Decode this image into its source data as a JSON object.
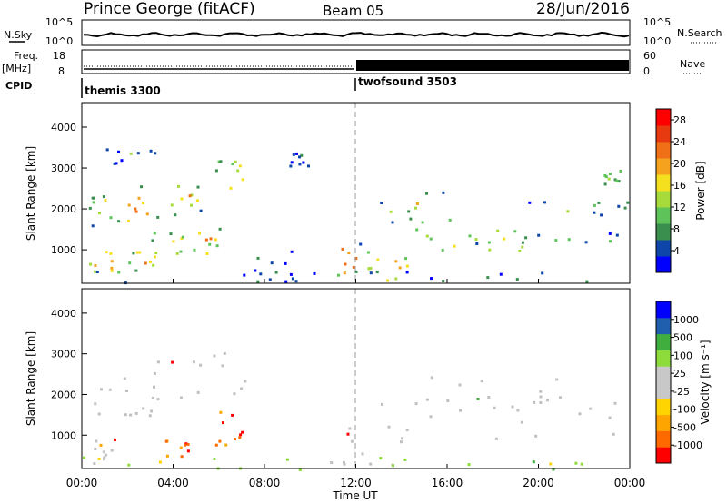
{
  "header": {
    "station": "Prince George (fitACF)",
    "beam": "Beam 05",
    "date": "28/Jun/2016"
  },
  "top_panels": {
    "nsky": {
      "label": "N.Sky",
      "ticks": [
        "10^5",
        "10^0"
      ],
      "right_label": "N.Search",
      "right_ticks": [
        "10^5",
        "10^0"
      ]
    },
    "freq": {
      "label_line1": "Freq.",
      "label_line2": "[MHz]",
      "ticks": [
        "18",
        "8"
      ],
      "right_label": "Nave",
      "right_ticks": [
        "60",
        "0"
      ]
    },
    "cpid": {
      "label": "CPID",
      "modes": [
        {
          "name": "themis 3300",
          "start_hour": 0
        },
        {
          "name": "twofsound 3503",
          "start_hour": 12
        }
      ]
    }
  },
  "colors": {
    "power_scale": [
      "#0000ff",
      "#0d45a8",
      "#3a8f4e",
      "#5ec45a",
      "#a6db3b",
      "#f5e020",
      "#f5a31e",
      "#f07018",
      "#e83a10",
      "#ff0000"
    ],
    "velocity_scale": [
      "#ff0000",
      "#ff6a00",
      "#ffa500",
      "#ffd400",
      "#c8c8c8",
      "#c8c8c8",
      "#8edb3c",
      "#3fae3f",
      "#1f5fae",
      "#0000ff"
    ],
    "ground_scatter": "#c0c0c0"
  },
  "chart_data": [
    {
      "type": "heatmap",
      "name": "power",
      "ylabel": "Slant Range [km]",
      "ylim": [
        180,
        4600
      ],
      "yticks": [
        "1000",
        "2000",
        "3000",
        "4000"
      ],
      "xlim": [
        0,
        24
      ],
      "colorbar": {
        "label": "Power [dB]",
        "range": [
          0,
          30
        ],
        "ticks": [
          "4",
          "8",
          "12",
          "16",
          "20",
          "24",
          "28"
        ]
      },
      "echo_regions": [
        {
          "t0": 0.1,
          "t1": 1.8,
          "r0": 250,
          "r1": 1000,
          "level": 0.85
        },
        {
          "t0": 0.3,
          "t1": 1.6,
          "r0": 1500,
          "r1": 2400,
          "level": 0.6
        },
        {
          "t0": 1.5,
          "t1": 3.3,
          "r0": 1600,
          "r1": 2600,
          "level": 0.75
        },
        {
          "t0": 2.0,
          "t1": 3.2,
          "r0": 500,
          "r1": 1000,
          "level": 0.7
        },
        {
          "t0": 3.0,
          "t1": 4.6,
          "r0": 800,
          "r1": 1500,
          "level": 0.6
        },
        {
          "t0": 3.8,
          "t1": 5.3,
          "r0": 1800,
          "r1": 2800,
          "level": 0.7
        },
        {
          "t0": 4.8,
          "t1": 6.3,
          "r0": 900,
          "r1": 1700,
          "level": 0.65
        },
        {
          "t0": 5.8,
          "t1": 7.3,
          "r0": 2500,
          "r1": 3200,
          "level": 0.7
        },
        {
          "t0": 1.0,
          "t1": 3.5,
          "r0": 3100,
          "r1": 3550,
          "level": 0.35
        },
        {
          "t0": 7.5,
          "t1": 9.5,
          "r0": 200,
          "r1": 1400,
          "level": 0.25
        },
        {
          "t0": 9.0,
          "t1": 10.0,
          "r0": 2900,
          "r1": 3400,
          "level": 0.2
        },
        {
          "t0": 10.8,
          "t1": 12.2,
          "r0": 350,
          "r1": 1200,
          "level": 0.9
        },
        {
          "t0": 12.0,
          "t1": 14.3,
          "r0": 250,
          "r1": 1000,
          "level": 0.8
        },
        {
          "t0": 13.0,
          "t1": 16.5,
          "r0": 1700,
          "r1": 2500,
          "level": 0.55
        },
        {
          "t0": 14.5,
          "t1": 20.0,
          "r0": 900,
          "r1": 1600,
          "level": 0.6
        },
        {
          "t0": 16.0,
          "t1": 23.9,
          "r0": 1100,
          "r1": 1500,
          "level": 0.45
        },
        {
          "t0": 19.5,
          "t1": 23.9,
          "r0": 1800,
          "r1": 2200,
          "level": 0.35
        },
        {
          "t0": 22.8,
          "t1": 23.9,
          "r0": 2500,
          "r1": 3000,
          "level": 0.4
        },
        {
          "t0": 0.0,
          "t1": 23.9,
          "r0": 180,
          "r1": 500,
          "level": 0.2
        }
      ]
    },
    {
      "type": "heatmap",
      "name": "velocity",
      "ylabel": "Slant Range [km]",
      "ylim": [
        180,
        4600
      ],
      "yticks": [
        "1000",
        "2000",
        "3000",
        "4000"
      ],
      "xlim": [
        0,
        24
      ],
      "xlabel": "Time UT",
      "xticks": [
        "00:00",
        "04:00",
        "08:00",
        "12:00",
        "16:00",
        "20:00",
        "00:00"
      ],
      "colorbar": {
        "label": "Velocity [m s⁻¹]",
        "ticks": [
          "1000",
          "500",
          "100",
          "25",
          "-25",
          "-100",
          "-500",
          "-1000"
        ]
      },
      "echo_regions": [
        {
          "t0": 0.1,
          "t1": 1.8,
          "r0": 250,
          "r1": 1000,
          "kind": "ground"
        },
        {
          "t0": 0.3,
          "t1": 3.3,
          "r0": 1500,
          "r1": 2600,
          "kind": "ground"
        },
        {
          "t0": 3.0,
          "t1": 7.3,
          "r0": 1800,
          "r1": 3200,
          "kind": "ground"
        },
        {
          "t0": 5.6,
          "t1": 7.0,
          "r0": 750,
          "r1": 1650,
          "kind": "neg_vel"
        },
        {
          "t0": 3.5,
          "t1": 4.7,
          "r0": 500,
          "r1": 1000,
          "kind": "neg_vel"
        },
        {
          "t0": 10.8,
          "t1": 14.3,
          "r0": 250,
          "r1": 1200,
          "kind": "ground"
        },
        {
          "t0": 13.0,
          "t1": 23.9,
          "r0": 900,
          "r1": 2500,
          "kind": "ground"
        },
        {
          "t0": 0.0,
          "t1": 23.9,
          "r0": 180,
          "r1": 500,
          "kind": "pos_low"
        }
      ]
    }
  ]
}
